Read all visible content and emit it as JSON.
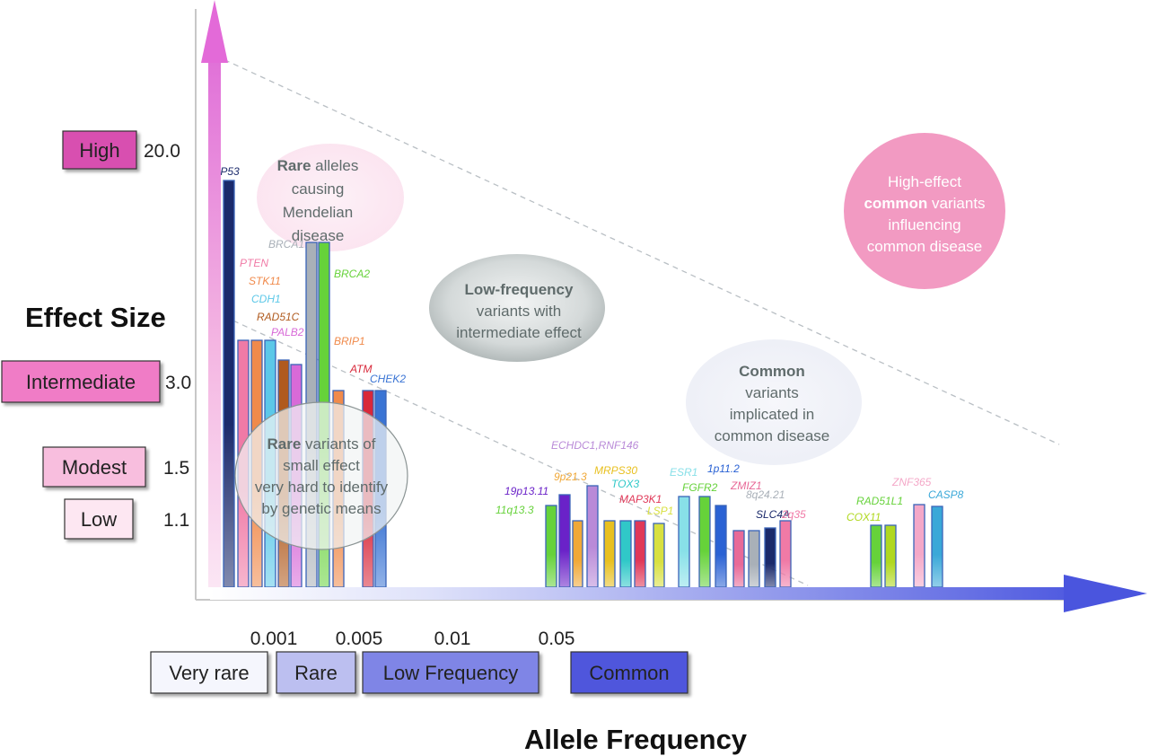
{
  "y_axis": {
    "title": "Effect Size",
    "levels": [
      {
        "label": "High",
        "value": "20.0",
        "color": "#d84fb0"
      },
      {
        "label": "Intermediate",
        "value": "3.0",
        "color": "#f07bc6"
      },
      {
        "label": "Modest",
        "value": "1.5",
        "color": "#f8bede"
      },
      {
        "label": "Low",
        "value": "1.1",
        "color": "#fde7f2"
      }
    ]
  },
  "x_axis": {
    "title": "Allele Frequency",
    "ticks": [
      "0.001",
      "0.005",
      "0.01",
      "0.05"
    ],
    "categories": [
      {
        "label": "Very rare",
        "color": "#f5f6fd"
      },
      {
        "label": "Rare",
        "color": "#bcbff0"
      },
      {
        "label": "Low Frequency",
        "color": "#7f85e6"
      },
      {
        "label": "Common",
        "color": "#4f57dc"
      }
    ]
  },
  "regions": [
    {
      "id": "rare-mendelian",
      "lines": [
        [
          {
            "t": "Rare",
            "b": true
          },
          {
            "t": " alleles"
          }
        ],
        [
          {
            "t": "causing"
          }
        ],
        [
          {
            "t": "Mendelian"
          }
        ],
        [
          {
            "t": "disease"
          }
        ]
      ]
    },
    {
      "id": "low-frequency",
      "lines": [
        [
          {
            "t": "Low-frequency",
            "b": true
          }
        ],
        [
          {
            "t": "variants with"
          }
        ],
        [
          {
            "t": "intermediate effect"
          }
        ]
      ]
    },
    {
      "id": "high-effect-common",
      "lines": [
        [
          {
            "t": "High-effect"
          }
        ],
        [
          {
            "t": "common",
            "b": true
          },
          {
            "t": " variants"
          }
        ],
        [
          {
            "t": "influencing"
          }
        ],
        [
          {
            "t": "common disease"
          }
        ]
      ]
    },
    {
      "id": "common",
      "lines": [
        [
          {
            "t": "Common",
            "b": true
          }
        ],
        [
          {
            "t": "variants"
          }
        ],
        [
          {
            "t": "implicated in"
          }
        ],
        [
          {
            "t": "common disease"
          }
        ]
      ]
    },
    {
      "id": "rare-small",
      "lines": [
        [
          {
            "t": "Rare",
            "b": true
          },
          {
            "t": " variants of"
          }
        ],
        [
          {
            "t": "small effect"
          }
        ],
        [
          {
            "t": "very hard to identify"
          }
        ],
        [
          {
            "t": "by genetic means"
          }
        ]
      ]
    }
  ],
  "genes": [
    {
      "label": "TP53",
      "color": "#1b2a6b"
    },
    {
      "label": "PTEN",
      "color": "#f07aa6"
    },
    {
      "label": "STK11",
      "color": "#f08a4b"
    },
    {
      "label": "CDH1",
      "color": "#5cc8e8"
    },
    {
      "label": "RAD51C",
      "color": "#b05a1e"
    },
    {
      "label": "PALB2",
      "color": "#d86ad8"
    },
    {
      "label": "BRCA1",
      "color": "#a9b0b8"
    },
    {
      "label": "BRCA2",
      "color": "#66d23a"
    },
    {
      "label": "BRIP1",
      "color": "#f08a4b"
    },
    {
      "label": "ATM",
      "color": "#d8283a"
    },
    {
      "label": "CHEK2",
      "color": "#3a74d4"
    },
    {
      "label": "ECHDC1,RNF146",
      "color": "#b98ad8"
    },
    {
      "label": "19p13.11",
      "color": "#6a22c8"
    },
    {
      "label": "11q13.3",
      "color": "#66d23a"
    },
    {
      "label": "9p21.3",
      "color": "#f0a838"
    },
    {
      "label": "MRPS30",
      "color": "#e8c020"
    },
    {
      "label": "TOX3",
      "color": "#30c8c8"
    },
    {
      "label": "MAP3K1",
      "color": "#e03858"
    },
    {
      "label": "LSP1",
      "color": "#d8e040"
    },
    {
      "label": "ESR1",
      "color": "#88e0e8"
    },
    {
      "label": "FGFR2",
      "color": "#66d23a"
    },
    {
      "label": "1p11.2",
      "color": "#2a62d4"
    },
    {
      "label": "ZMIZ1",
      "color": "#e86a98"
    },
    {
      "label": "8q24.21",
      "color": "#a9b0b8"
    },
    {
      "label": "SLC4A",
      "color": "#1b2a6b"
    },
    {
      "label": "2q35",
      "color": "#f07aa6"
    },
    {
      "label": "ZNF365",
      "color": "#f4a8c8"
    },
    {
      "label": "RAD51L1",
      "color": "#66d23a"
    },
    {
      "label": "COX11",
      "color": "#b0d820"
    },
    {
      "label": "CASP8",
      "color": "#3aa8d8"
    }
  ]
}
